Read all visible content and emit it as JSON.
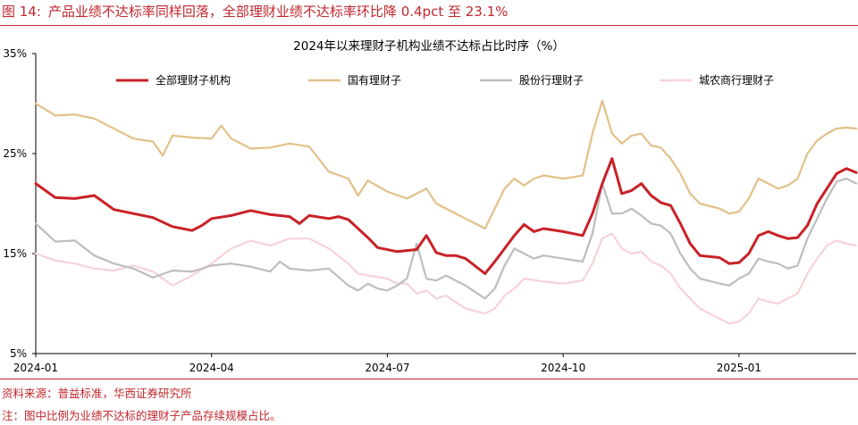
{
  "figure": {
    "label": "图 14:",
    "title": "产品业绩不达标率同样回落，全部理财业绩不达标率环比降 0.4pct 至 23.1%",
    "source": "资料来源：普益标准，华西证券研究所",
    "note": "注：图中比例为业绩不达标的理财子产品存续规模占比。"
  },
  "colors": {
    "accent": "#c0272d",
    "all": "#c82127",
    "state": "#e3c088",
    "joint": "#bdbdbd",
    "rural": "#f6d3d8"
  },
  "chart_data": {
    "type": "line",
    "title": "2024年以来理财子机构业绩不达标占比时序（%）",
    "xlabel": "",
    "ylabel": "",
    "ylim": [
      5,
      35
    ],
    "yticks": [
      "5%",
      "15%",
      "25%",
      "35%"
    ],
    "xticks": [
      "2024-01",
      "2024-04",
      "2024-07",
      "2024-10",
      "2025-01"
    ],
    "x_range": [
      "2024-01",
      "2025-04"
    ],
    "grid": false,
    "legend": "top",
    "series": [
      {
        "name": "全部理财子机构",
        "color": "#c82127",
        "points": [
          [
            0,
            22.0
          ],
          [
            2,
            20.6
          ],
          [
            4,
            20.5
          ],
          [
            6,
            20.8
          ],
          [
            8,
            19.4
          ],
          [
            10,
            19.0
          ],
          [
            12,
            18.6
          ],
          [
            14,
            17.7
          ],
          [
            16,
            17.3
          ],
          [
            17,
            17.8
          ],
          [
            18,
            18.5
          ],
          [
            20,
            18.8
          ],
          [
            22,
            19.3
          ],
          [
            24,
            18.9
          ],
          [
            26,
            18.7
          ],
          [
            27,
            18.0
          ],
          [
            28,
            18.8
          ],
          [
            30,
            18.5
          ],
          [
            31,
            18.7
          ],
          [
            32,
            18.4
          ],
          [
            34,
            16.6
          ],
          [
            35,
            15.6
          ],
          [
            37,
            15.2
          ],
          [
            39,
            15.4
          ],
          [
            40,
            16.8
          ],
          [
            41,
            15.1
          ],
          [
            42,
            14.8
          ],
          [
            43,
            14.8
          ],
          [
            44,
            14.5
          ],
          [
            46,
            13.0
          ],
          [
            47,
            14.2
          ],
          [
            48,
            15.5
          ],
          [
            49,
            16.8
          ],
          [
            50,
            17.9
          ],
          [
            51,
            17.2
          ],
          [
            52,
            17.5
          ],
          [
            54,
            17.2
          ],
          [
            56,
            16.8
          ],
          [
            57,
            19.0
          ],
          [
            58,
            22.0
          ],
          [
            59,
            24.5
          ],
          [
            60,
            21.0
          ],
          [
            61,
            21.3
          ],
          [
            62,
            22.0
          ],
          [
            63,
            20.8
          ],
          [
            64,
            20.1
          ],
          [
            65,
            19.8
          ],
          [
            66,
            18.0
          ],
          [
            67,
            16.0
          ],
          [
            68,
            14.8
          ],
          [
            70,
            14.6
          ],
          [
            71,
            14.0
          ],
          [
            72,
            14.1
          ],
          [
            73,
            15.0
          ],
          [
            74,
            16.8
          ],
          [
            75,
            17.2
          ],
          [
            76,
            16.8
          ],
          [
            77,
            16.5
          ],
          [
            78,
            16.6
          ],
          [
            79,
            17.8
          ],
          [
            80,
            20.0
          ],
          [
            81,
            21.5
          ],
          [
            82,
            23.0
          ],
          [
            83,
            23.5
          ],
          [
            84,
            23.1
          ]
        ]
      },
      {
        "name": "国有理财子",
        "color": "#e3c088",
        "points": [
          [
            0,
            30.0
          ],
          [
            2,
            28.8
          ],
          [
            4,
            28.9
          ],
          [
            6,
            28.5
          ],
          [
            8,
            27.5
          ],
          [
            10,
            26.5
          ],
          [
            12,
            26.2
          ],
          [
            13,
            24.8
          ],
          [
            14,
            26.8
          ],
          [
            16,
            26.6
          ],
          [
            18,
            26.5
          ],
          [
            19,
            27.8
          ],
          [
            20,
            26.5
          ],
          [
            22,
            25.5
          ],
          [
            24,
            25.6
          ],
          [
            26,
            26.0
          ],
          [
            28,
            25.7
          ],
          [
            30,
            23.2
          ],
          [
            32,
            22.5
          ],
          [
            33,
            20.8
          ],
          [
            34,
            22.3
          ],
          [
            36,
            21.2
          ],
          [
            38,
            20.5
          ],
          [
            40,
            21.5
          ],
          [
            41,
            20.0
          ],
          [
            42,
            19.5
          ],
          [
            44,
            18.5
          ],
          [
            46,
            17.5
          ],
          [
            47,
            19.5
          ],
          [
            48,
            21.5
          ],
          [
            49,
            22.5
          ],
          [
            50,
            21.8
          ],
          [
            51,
            22.5
          ],
          [
            52,
            22.8
          ],
          [
            54,
            22.5
          ],
          [
            56,
            22.8
          ],
          [
            57,
            27.0
          ],
          [
            58,
            30.3
          ],
          [
            59,
            27.0
          ],
          [
            60,
            26.0
          ],
          [
            61,
            26.8
          ],
          [
            62,
            27.0
          ],
          [
            63,
            25.8
          ],
          [
            64,
            25.6
          ],
          [
            65,
            24.5
          ],
          [
            66,
            23.0
          ],
          [
            67,
            21.0
          ],
          [
            68,
            20.0
          ],
          [
            70,
            19.5
          ],
          [
            71,
            19.0
          ],
          [
            72,
            19.2
          ],
          [
            73,
            20.5
          ],
          [
            74,
            22.5
          ],
          [
            75,
            22.0
          ],
          [
            76,
            21.5
          ],
          [
            77,
            21.8
          ],
          [
            78,
            22.5
          ],
          [
            79,
            25.0
          ],
          [
            80,
            26.3
          ],
          [
            81,
            27.0
          ],
          [
            82,
            27.5
          ],
          [
            83,
            27.6
          ],
          [
            84,
            27.5
          ]
        ]
      },
      {
        "name": "股份行理财子",
        "color": "#bdbdbd",
        "points": [
          [
            0,
            18.0
          ],
          [
            2,
            16.2
          ],
          [
            4,
            16.3
          ],
          [
            6,
            14.8
          ],
          [
            8,
            14.0
          ],
          [
            10,
            13.5
          ],
          [
            12,
            12.6
          ],
          [
            14,
            13.3
          ],
          [
            16,
            13.2
          ],
          [
            18,
            13.8
          ],
          [
            20,
            14.0
          ],
          [
            22,
            13.7
          ],
          [
            24,
            13.2
          ],
          [
            25,
            14.2
          ],
          [
            26,
            13.5
          ],
          [
            28,
            13.3
          ],
          [
            30,
            13.5
          ],
          [
            32,
            11.8
          ],
          [
            33,
            11.3
          ],
          [
            34,
            12.0
          ],
          [
            35,
            11.5
          ],
          [
            36,
            11.3
          ],
          [
            37,
            11.8
          ],
          [
            38,
            12.5
          ],
          [
            39,
            16.0
          ],
          [
            40,
            12.5
          ],
          [
            41,
            12.3
          ],
          [
            42,
            12.8
          ],
          [
            44,
            11.8
          ],
          [
            46,
            10.5
          ],
          [
            47,
            11.5
          ],
          [
            48,
            13.8
          ],
          [
            49,
            15.5
          ],
          [
            50,
            15.0
          ],
          [
            51,
            14.5
          ],
          [
            52,
            14.8
          ],
          [
            54,
            14.5
          ],
          [
            56,
            14.2
          ],
          [
            57,
            17.0
          ],
          [
            58,
            22.0
          ],
          [
            59,
            19.0
          ],
          [
            60,
            19.0
          ],
          [
            61,
            19.5
          ],
          [
            62,
            18.8
          ],
          [
            63,
            18.0
          ],
          [
            64,
            17.8
          ],
          [
            65,
            17.0
          ],
          [
            66,
            15.0
          ],
          [
            67,
            13.5
          ],
          [
            68,
            12.5
          ],
          [
            70,
            12.0
          ],
          [
            71,
            11.8
          ],
          [
            72,
            12.5
          ],
          [
            73,
            13.0
          ],
          [
            74,
            14.5
          ],
          [
            75,
            14.2
          ],
          [
            76,
            14.0
          ],
          [
            77,
            13.5
          ],
          [
            78,
            13.8
          ],
          [
            79,
            16.5
          ],
          [
            80,
            18.5
          ],
          [
            81,
            20.5
          ],
          [
            82,
            22.2
          ],
          [
            83,
            22.5
          ],
          [
            84,
            22.0
          ]
        ]
      },
      {
        "name": "城农商行理财子",
        "color": "#f6d3d8",
        "points": [
          [
            0,
            15.0
          ],
          [
            2,
            14.3
          ],
          [
            4,
            14.0
          ],
          [
            6,
            13.5
          ],
          [
            8,
            13.3
          ],
          [
            10,
            13.8
          ],
          [
            12,
            13.2
          ],
          [
            14,
            11.8
          ],
          [
            16,
            12.8
          ],
          [
            18,
            14.0
          ],
          [
            20,
            15.5
          ],
          [
            22,
            16.3
          ],
          [
            24,
            15.8
          ],
          [
            26,
            16.5
          ],
          [
            28,
            16.5
          ],
          [
            30,
            15.5
          ],
          [
            32,
            14.0
          ],
          [
            33,
            13.0
          ],
          [
            34,
            12.8
          ],
          [
            36,
            12.5
          ],
          [
            37,
            12.0
          ],
          [
            38,
            12.0
          ],
          [
            39,
            11.0
          ],
          [
            40,
            11.3
          ],
          [
            41,
            10.5
          ],
          [
            42,
            10.8
          ],
          [
            44,
            9.5
          ],
          [
            46,
            9.0
          ],
          [
            47,
            9.5
          ],
          [
            48,
            10.8
          ],
          [
            49,
            11.5
          ],
          [
            50,
            12.5
          ],
          [
            52,
            12.2
          ],
          [
            54,
            12.0
          ],
          [
            56,
            12.3
          ],
          [
            57,
            14.0
          ],
          [
            58,
            16.5
          ],
          [
            59,
            17.0
          ],
          [
            60,
            15.5
          ],
          [
            61,
            15.0
          ],
          [
            62,
            15.2
          ],
          [
            63,
            14.2
          ],
          [
            64,
            13.8
          ],
          [
            65,
            13.0
          ],
          [
            66,
            11.5
          ],
          [
            67,
            10.5
          ],
          [
            68,
            9.5
          ],
          [
            70,
            8.5
          ],
          [
            71,
            8.0
          ],
          [
            72,
            8.2
          ],
          [
            73,
            9.0
          ],
          [
            74,
            10.5
          ],
          [
            75,
            10.2
          ],
          [
            76,
            10.0
          ],
          [
            77,
            10.5
          ],
          [
            78,
            11.0
          ],
          [
            79,
            13.0
          ],
          [
            80,
            14.5
          ],
          [
            81,
            15.8
          ],
          [
            82,
            16.3
          ],
          [
            83,
            16.0
          ],
          [
            84,
            15.8
          ]
        ]
      }
    ]
  }
}
